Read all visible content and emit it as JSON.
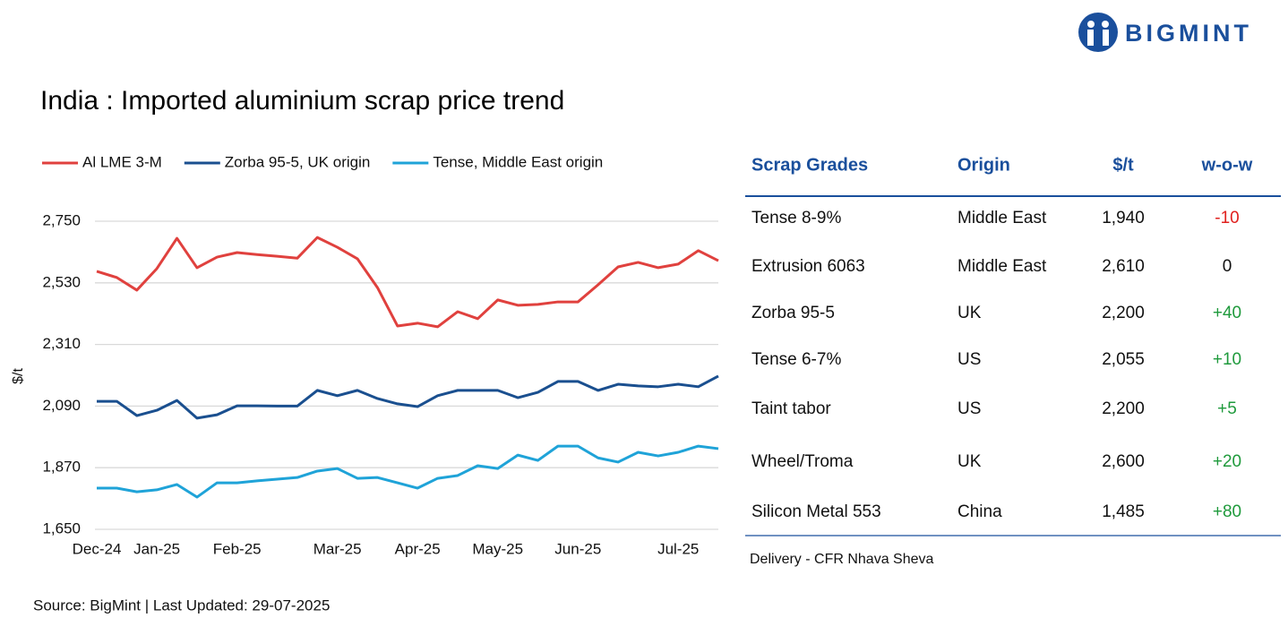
{
  "header": {
    "logo": "BIGMINT",
    "title": "India : Imported aluminium scrap price trend"
  },
  "chart_data": {
    "type": "line",
    "y_label": "$/t",
    "legend": "top",
    "grid": true,
    "categories": [
      "Dec-24",
      null,
      null,
      "Jan-25",
      null,
      null,
      null,
      "Feb-25",
      null,
      null,
      null,
      null,
      "Mar-25",
      null,
      null,
      null,
      "Apr-25",
      null,
      null,
      null,
      "May-25",
      null,
      null,
      null,
      "Jun-25",
      null,
      null,
      null,
      null,
      "Jul-25",
      null,
      null
    ],
    "ylim": [
      1650,
      2750
    ],
    "yticks": [
      {
        "value": 1650,
        "label": "1,650"
      },
      {
        "value": 1870,
        "label": "1,870"
      },
      {
        "value": 2090,
        "label": "2,090"
      },
      {
        "value": 2310,
        "label": "2,310"
      },
      {
        "value": 2530,
        "label": "2,530"
      },
      {
        "value": 2750,
        "label": "2,750"
      }
    ],
    "series": [
      {
        "name": "Al LME 3-M",
        "color": "#e0413e",
        "values": [
          2571,
          2549,
          2504,
          2581,
          2689,
          2584,
          2622,
          2638,
          2631,
          2625,
          2618,
          2692,
          2657,
          2616,
          2513,
          2376,
          2386,
          2373,
          2427,
          2402,
          2469,
          2450,
          2453,
          2462,
          2462,
          2523,
          2587,
          2603,
          2584,
          2597,
          2645,
          2609
        ]
      },
      {
        "name": "Zorba 95-5, UK origin",
        "color": "#1a4f8f",
        "values": [
          2107,
          2107,
          2056,
          2075,
          2110,
          2047,
          2059,
          2091,
          2091,
          2090,
          2090,
          2146,
          2127,
          2146,
          2117,
          2098,
          2088,
          2127,
          2146,
          2146,
          2146,
          2120,
          2139,
          2178,
          2178,
          2146,
          2168,
          2162,
          2159,
          2168,
          2159,
          2197
        ]
      },
      {
        "name": "Tense, Middle East origin",
        "color": "#1fa3d8",
        "values": [
          1797,
          1797,
          1784,
          1791,
          1810,
          1765,
          1816,
          1816,
          1823,
          1829,
          1835,
          1858,
          1867,
          1832,
          1835,
          1816,
          1797,
          1832,
          1842,
          1877,
          1867,
          1915,
          1896,
          1947,
          1947,
          1905,
          1890,
          1925,
          1912,
          1925,
          1947,
          1938
        ]
      }
    ]
  },
  "table": {
    "columns": [
      "Scrap Grades",
      "Origin",
      "$/t",
      "w-o-w"
    ],
    "rows": [
      [
        "Tense 8-9%",
        "Middle East",
        "1,940",
        "-10"
      ],
      [
        "Extrusion 6063",
        "Middle East",
        "2,610",
        "0"
      ],
      [
        "Zorba 95-5",
        "UK",
        "2,200",
        "+40"
      ],
      [
        "Tense 6-7%",
        "US",
        "2,055",
        "+10"
      ],
      [
        "Taint tabor",
        "US",
        "2,200",
        "+5"
      ],
      [
        "Wheel/Troma",
        "UK",
        "2,600",
        "+20"
      ],
      [
        "Silicon Metal 553",
        "China",
        "1,485",
        "+80"
      ]
    ],
    "note": "Delivery - CFR Nhava Sheva"
  },
  "footer": {
    "source": "Source: BigMint | Last Updated: 29-07-2025"
  }
}
